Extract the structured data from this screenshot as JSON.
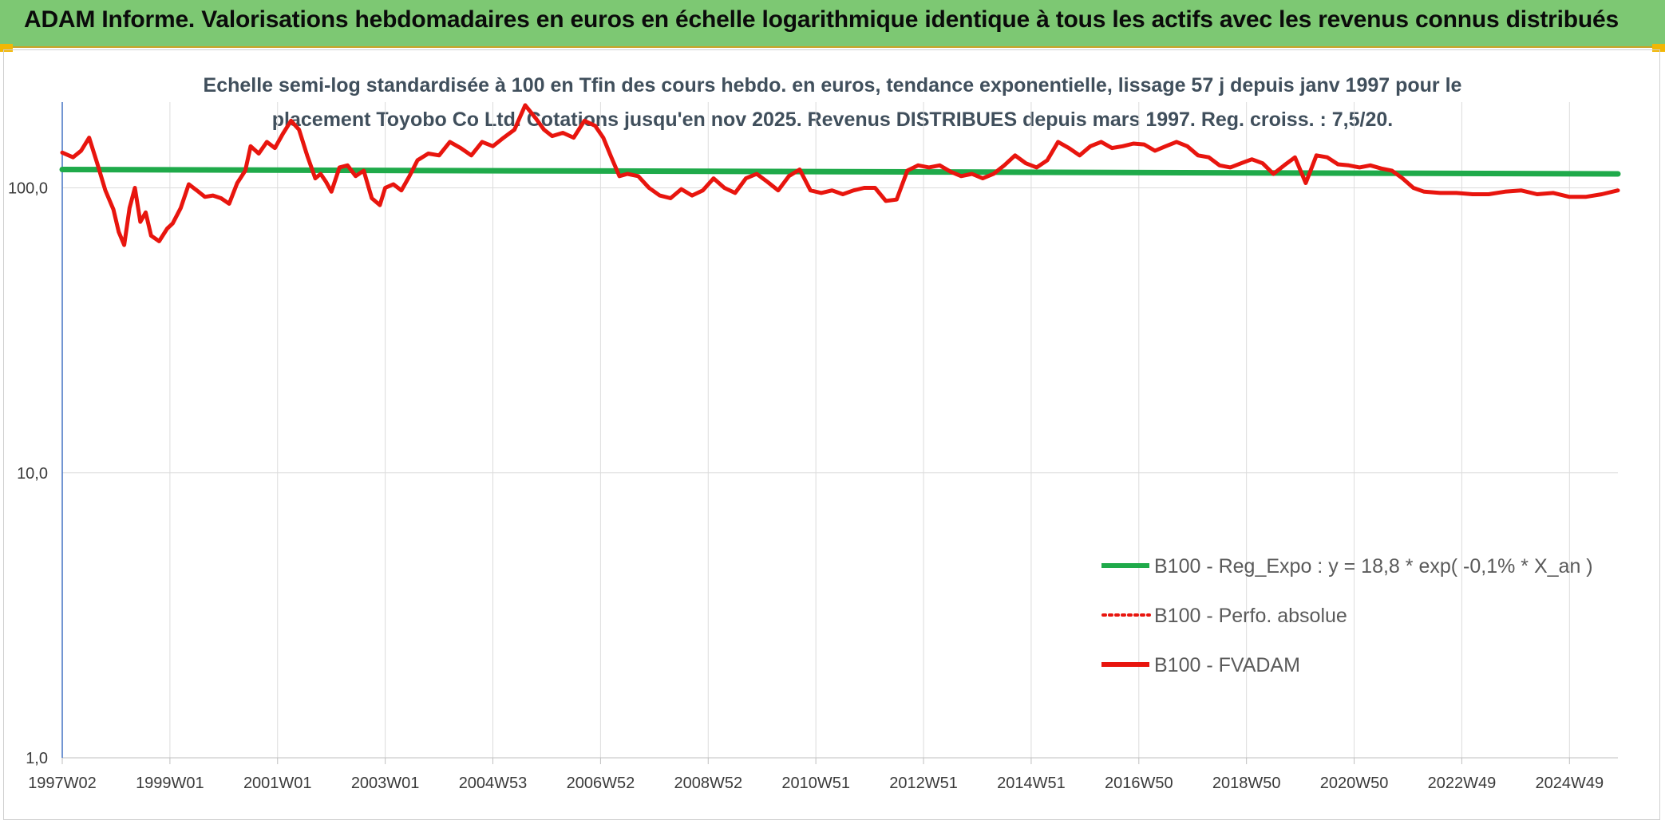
{
  "header": {
    "title": "ADAM Informe. Valorisations hebdomadaires en euros en échelle logarithmique identique à tous les actifs avec les revenus connus distribués"
  },
  "colors": {
    "header_bg": "#7dc873",
    "regression": "#1faa4a",
    "fvadam": "#e8150e",
    "perfo": "#e8150e",
    "grid": "#dcdcdc"
  },
  "chart_data": {
    "type": "line",
    "title_lines": [
      "Echelle semi-log standardisée à 100 en Tfin des cours hebdo. en euros, tendance exponentielle, lissage 57 j depuis janv 1997 pour le",
      "placement Toyobo Co Ltd. Cotations jusqu'en nov 2025. Revenus DISTRIBUES depuis mars 1997. Reg. croiss. : 7,5/20."
    ],
    "y_scale": "log",
    "ylim": [
      1,
      200
    ],
    "y_ticks": [
      {
        "value": 1,
        "label": "1,0"
      },
      {
        "value": 10,
        "label": "10,0"
      },
      {
        "value": 100,
        "label": "100,0"
      }
    ],
    "xlim": [
      1997.0,
      2025.9
    ],
    "x_ticks": [
      {
        "value": 1997.0,
        "label": "1997W02"
      },
      {
        "value": 1999.0,
        "label": "1999W01"
      },
      {
        "value": 2001.0,
        "label": "2001W01"
      },
      {
        "value": 2003.0,
        "label": "2003W01"
      },
      {
        "value": 2005.0,
        "label": "2004W53"
      },
      {
        "value": 2007.0,
        "label": "2006W52"
      },
      {
        "value": 2009.0,
        "label": "2008W52"
      },
      {
        "value": 2011.0,
        "label": "2010W51"
      },
      {
        "value": 2013.0,
        "label": "2012W51"
      },
      {
        "value": 2015.0,
        "label": "2014W51"
      },
      {
        "value": 2017.0,
        "label": "2016W50"
      },
      {
        "value": 2019.0,
        "label": "2018W50"
      },
      {
        "value": 2021.0,
        "label": "2020W50"
      },
      {
        "value": 2023.0,
        "label": "2022W49"
      },
      {
        "value": 2025.0,
        "label": "2024W49"
      }
    ],
    "legend_position": "bottom-right",
    "series": [
      {
        "name": "B100 - Reg_Expo : y = 18,8 * exp( -0,1% *  X_an )",
        "style": "solid-thick",
        "color": "#1faa4a",
        "x": [
          1997.0,
          2025.9
        ],
        "y": [
          116,
          112
        ]
      },
      {
        "name": "B100 - Perfo. absolue",
        "style": "dotted",
        "color": "#e8150e",
        "x": [],
        "y": []
      },
      {
        "name": "B100 - FVADAM",
        "style": "solid",
        "color": "#e8150e",
        "x": [
          1997.0,
          1997.2,
          1997.35,
          1997.5,
          1997.65,
          1997.8,
          1997.95,
          1998.05,
          1998.15,
          1998.25,
          1998.35,
          1998.45,
          1998.55,
          1998.65,
          1998.8,
          1998.95,
          1999.05,
          1999.2,
          1999.35,
          1999.5,
          1999.65,
          1999.8,
          1999.95,
          2000.1,
          2000.25,
          2000.4,
          2000.5,
          2000.65,
          2000.8,
          2000.95,
          2001.1,
          2001.25,
          2001.4,
          2001.55,
          2001.7,
          2001.8,
          2001.9,
          2002.0,
          2002.15,
          2002.3,
          2002.45,
          2002.6,
          2002.75,
          2002.9,
          2003.0,
          2003.15,
          2003.3,
          2003.45,
          2003.6,
          2003.8,
          2004.0,
          2004.2,
          2004.4,
          2004.6,
          2004.8,
          2005.0,
          2005.2,
          2005.4,
          2005.6,
          2005.8,
          2005.95,
          2006.1,
          2006.3,
          2006.5,
          2006.7,
          2006.9,
          2007.05,
          2007.2,
          2007.35,
          2007.5,
          2007.7,
          2007.9,
          2008.1,
          2008.3,
          2008.5,
          2008.7,
          2008.9,
          2009.1,
          2009.3,
          2009.5,
          2009.7,
          2009.9,
          2010.1,
          2010.3,
          2010.5,
          2010.7,
          2010.9,
          2011.1,
          2011.3,
          2011.5,
          2011.7,
          2011.9,
          2012.1,
          2012.3,
          2012.5,
          2012.7,
          2012.9,
          2013.1,
          2013.3,
          2013.5,
          2013.7,
          2013.9,
          2014.1,
          2014.3,
          2014.5,
          2014.7,
          2014.9,
          2015.1,
          2015.3,
          2015.5,
          2015.7,
          2015.9,
          2016.1,
          2016.3,
          2016.5,
          2016.7,
          2016.9,
          2017.1,
          2017.3,
          2017.5,
          2017.7,
          2017.9,
          2018.1,
          2018.3,
          2018.5,
          2018.7,
          2018.9,
          2019.1,
          2019.3,
          2019.5,
          2019.7,
          2019.9,
          2020.1,
          2020.3,
          2020.5,
          2020.7,
          2020.9,
          2021.1,
          2021.3,
          2021.5,
          2021.7,
          2021.9,
          2022.1,
          2022.3,
          2022.6,
          2022.9,
          2023.2,
          2023.5,
          2023.8,
          2024.1,
          2024.4,
          2024.7,
          2025.0,
          2025.3,
          2025.6,
          2025.9
        ],
        "y": [
          133,
          128,
          135,
          150,
          122,
          98,
          84,
          70,
          63,
          85,
          100,
          76,
          82,
          68,
          65,
          72,
          75,
          85,
          103,
          98,
          93,
          94,
          92,
          88,
          104,
          115,
          140,
          132,
          145,
          138,
          155,
          172,
          160,
          130,
          108,
          112,
          105,
          97,
          118,
          120,
          110,
          115,
          92,
          87,
          100,
          103,
          98,
          110,
          125,
          132,
          130,
          145,
          138,
          130,
          145,
          140,
          150,
          160,
          195,
          175,
          160,
          152,
          156,
          150,
          172,
          165,
          150,
          128,
          110,
          112,
          110,
          100,
          94,
          92,
          99,
          94,
          98,
          108,
          100,
          96,
          108,
          112,
          105,
          98,
          110,
          116,
          98,
          96,
          98,
          95,
          98,
          100,
          100,
          90,
          91,
          115,
          120,
          118,
          120,
          114,
          110,
          112,
          108,
          112,
          120,
          130,
          122,
          118,
          125,
          145,
          138,
          130,
          140,
          145,
          138,
          140,
          143,
          142,
          135,
          140,
          145,
          140,
          130,
          128,
          120,
          118,
          122,
          126,
          122,
          112,
          120,
          128,
          104,
          130,
          128,
          121,
          120,
          118,
          120,
          117,
          115,
          108,
          100,
          97,
          96,
          96,
          95,
          95,
          97,
          98,
          95,
          96,
          93,
          93,
          95,
          98
        ]
      }
    ]
  }
}
